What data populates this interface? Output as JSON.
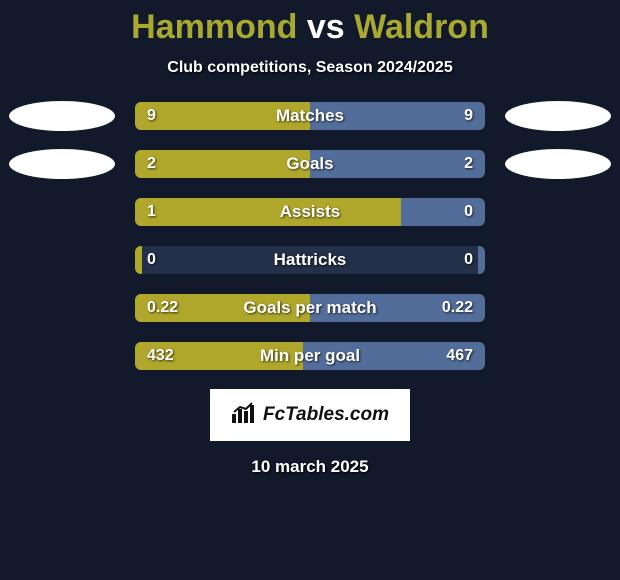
{
  "header": {
    "player1": "Hammond",
    "vs": "vs",
    "player2": "Waldron",
    "title_color_p1": "#a9a92f",
    "title_color_p2": "#a9a92f",
    "subtitle": "Club competitions, Season 2024/2025"
  },
  "colors": {
    "left": "#afa72b",
    "right": "#536d9a",
    "background": "#12192a",
    "oval_left": "#ffffff",
    "oval_right": "#ffffff",
    "bar_bg": "#233049"
  },
  "stats": [
    {
      "label": "Matches",
      "left_val": "9",
      "right_val": "9",
      "left_pct": 50,
      "right_pct": 50,
      "show_ovals": true
    },
    {
      "label": "Goals",
      "left_val": "2",
      "right_val": "2",
      "left_pct": 50,
      "right_pct": 50,
      "show_ovals": true
    },
    {
      "label": "Assists",
      "left_val": "1",
      "right_val": "0",
      "left_pct": 76,
      "right_pct": 24,
      "show_ovals": false
    },
    {
      "label": "Hattricks",
      "left_val": "0",
      "right_val": "0",
      "left_pct": 2,
      "right_pct": 2,
      "show_ovals": false
    },
    {
      "label": "Goals per match",
      "left_val": "0.22",
      "right_val": "0.22",
      "left_pct": 50,
      "right_pct": 50,
      "show_ovals": false
    },
    {
      "label": "Min per goal",
      "left_val": "432",
      "right_val": "467",
      "left_pct": 48,
      "right_pct": 52,
      "show_ovals": false
    }
  ],
  "footer": {
    "logo_text": "FcTables.com",
    "date": "10 march 2025"
  }
}
